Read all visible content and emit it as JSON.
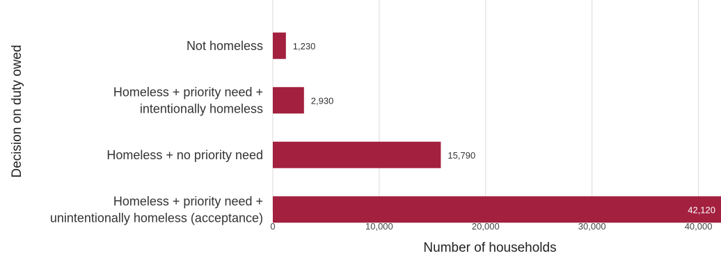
{
  "chart_data": {
    "type": "bar",
    "orientation": "horizontal",
    "title": "",
    "xlabel": "Number of households",
    "ylabel": "Decision on duty owed",
    "categories": [
      [
        "Not homeless"
      ],
      [
        "Homeless + priority need +",
        "intentionally homeless"
      ],
      [
        "Homeless + no priority need"
      ],
      [
        "Homeless + priority need +",
        "unintentionally homeless (acceptance)"
      ]
    ],
    "values": [
      1230,
      2930,
      15790,
      42120
    ],
    "value_labels": [
      "1,230",
      "2,930",
      "15,790",
      "42,120"
    ],
    "xlim": [
      0,
      42120
    ],
    "xticks": [
      0,
      10000,
      20000,
      30000,
      40000
    ],
    "xtick_labels": [
      "0",
      "10,000",
      "20,000",
      "30,000",
      "40,000"
    ],
    "grid": "vertical",
    "legend": "none",
    "colors": {
      "bar": "#A3203F",
      "grid": "#D9D9D9",
      "label_outside": "#333333",
      "label_inside": "#ffffff"
    }
  }
}
